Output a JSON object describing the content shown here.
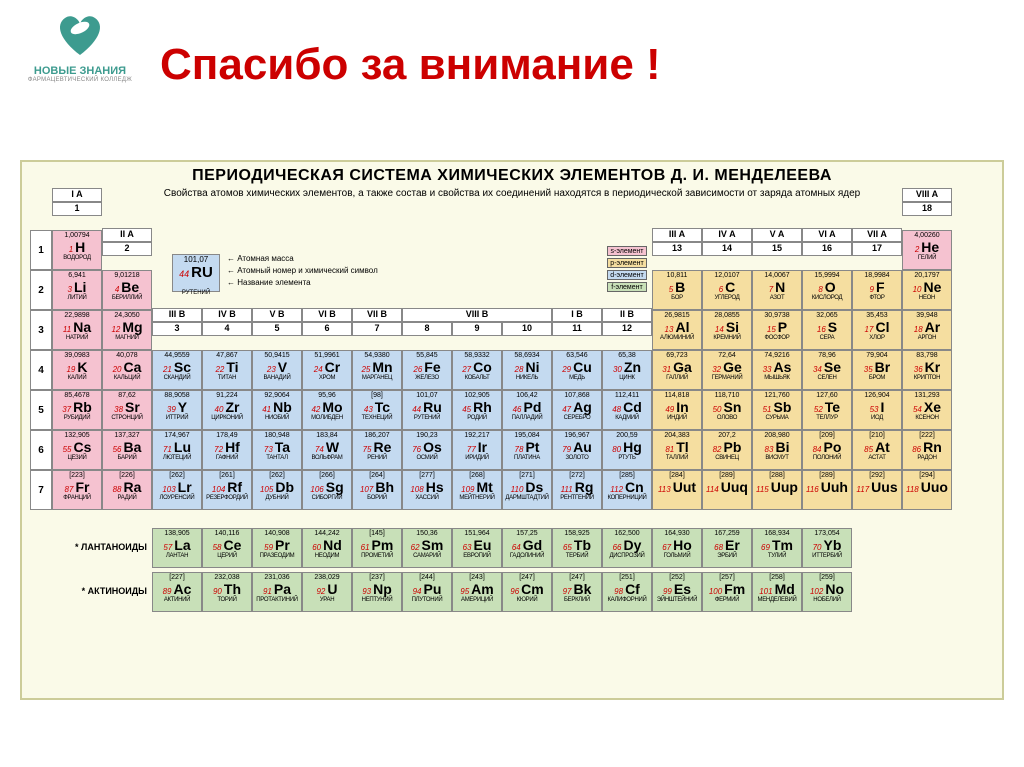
{
  "logo": {
    "line1": "НОВЫЕ ЗНАНИЯ",
    "line2": "ФАРМАЦЕВТИЧЕСКИЙ КОЛЛЕДЖ",
    "color1": "#3d9b8f",
    "color2": "#888888"
  },
  "title": {
    "text": "Спасибо за внимание !",
    "color": "#cc0000"
  },
  "table": {
    "bg": "#fafae8",
    "title": "ПЕРИОДИЧЕСКАЯ СИСТЕМА ХИМИЧЕСКИХ ЭЛЕМЕНТОВ Д. И. МЕНДЕЛЕЕВА",
    "subtitle": "Свойства атомов химических элементов, а также состав и свойства их соединений находятся в периодической зависимости от заряда атомных ядер",
    "colors": {
      "s": "#f5c2d0",
      "p": "#f5dea0",
      "d": "#c4daf0",
      "f": "#c8e0b8",
      "header": "#ffffff"
    },
    "legend_types": [
      {
        "label": "s-элемент",
        "color": "#f5c2d0"
      },
      {
        "label": "p-элемент",
        "color": "#f5dea0"
      },
      {
        "label": "d-элемент",
        "color": "#c4daf0"
      },
      {
        "label": "f-элемент",
        "color": "#c8e0b8"
      }
    ],
    "key": {
      "mass": "101,07",
      "num": "44",
      "sym": "RU",
      "name": "РУТЕНИЙ",
      "labels": [
        "Атомная масса",
        "Атомный номер и химический символ",
        "Название элемента"
      ]
    },
    "group_labels_top": [
      "I A",
      "II A",
      "III B",
      "IV B",
      "V B",
      "VI B",
      "VII B",
      "VIII B",
      "I B",
      "II B",
      "III A",
      "IV A",
      "V A",
      "VI A",
      "VII A",
      "VIII A"
    ],
    "group_numbers": [
      "1",
      "2",
      "3",
      "4",
      "5",
      "6",
      "7",
      "8",
      "9",
      "10",
      "11",
      "12",
      "13",
      "14",
      "15",
      "16",
      "17",
      "18"
    ],
    "periods": [
      "1",
      "2",
      "3",
      "4",
      "5",
      "6",
      "7"
    ],
    "lanth_label": "* ЛАНТАНОИДЫ",
    "actin_label": "* АКТИНОИДЫ",
    "elements": [
      {
        "n": 1,
        "s": "H",
        "m": "1,00794",
        "nm": "ВОДОРОД",
        "g": 1,
        "p": 1,
        "b": "s"
      },
      {
        "n": 2,
        "s": "He",
        "m": "4,00260",
        "nm": "ГЕЛИЙ",
        "g": 18,
        "p": 1,
        "b": "s"
      },
      {
        "n": 3,
        "s": "Li",
        "m": "6,941",
        "nm": "ЛИТИЙ",
        "g": 1,
        "p": 2,
        "b": "s"
      },
      {
        "n": 4,
        "s": "Be",
        "m": "9,01218",
        "nm": "БЕРИЛЛИЙ",
        "g": 2,
        "p": 2,
        "b": "s"
      },
      {
        "n": 5,
        "s": "B",
        "m": "10,811",
        "nm": "БОР",
        "g": 13,
        "p": 2,
        "b": "p"
      },
      {
        "n": 6,
        "s": "C",
        "m": "12,0107",
        "nm": "УГЛЕРОД",
        "g": 14,
        "p": 2,
        "b": "p"
      },
      {
        "n": 7,
        "s": "N",
        "m": "14,0067",
        "nm": "АЗОТ",
        "g": 15,
        "p": 2,
        "b": "p"
      },
      {
        "n": 8,
        "s": "O",
        "m": "15,9994",
        "nm": "КИСЛОРОД",
        "g": 16,
        "p": 2,
        "b": "p"
      },
      {
        "n": 9,
        "s": "F",
        "m": "18,9984",
        "nm": "ФТОР",
        "g": 17,
        "p": 2,
        "b": "p"
      },
      {
        "n": 10,
        "s": "Ne",
        "m": "20,1797",
        "nm": "НЕОН",
        "g": 18,
        "p": 2,
        "b": "p"
      },
      {
        "n": 11,
        "s": "Na",
        "m": "22,9898",
        "nm": "НАТРИЙ",
        "g": 1,
        "p": 3,
        "b": "s"
      },
      {
        "n": 12,
        "s": "Mg",
        "m": "24,3050",
        "nm": "МАГНИЙ",
        "g": 2,
        "p": 3,
        "b": "s"
      },
      {
        "n": 13,
        "s": "Al",
        "m": "26,9815",
        "nm": "АЛЮМИНИЙ",
        "g": 13,
        "p": 3,
        "b": "p"
      },
      {
        "n": 14,
        "s": "Si",
        "m": "28,0855",
        "nm": "КРЕМНИЙ",
        "g": 14,
        "p": 3,
        "b": "p"
      },
      {
        "n": 15,
        "s": "P",
        "m": "30,9738",
        "nm": "ФОСФОР",
        "g": 15,
        "p": 3,
        "b": "p"
      },
      {
        "n": 16,
        "s": "S",
        "m": "32,065",
        "nm": "СЕРА",
        "g": 16,
        "p": 3,
        "b": "p"
      },
      {
        "n": 17,
        "s": "Cl",
        "m": "35,453",
        "nm": "ХЛОР",
        "g": 17,
        "p": 3,
        "b": "p"
      },
      {
        "n": 18,
        "s": "Ar",
        "m": "39,948",
        "nm": "АРГОН",
        "g": 18,
        "p": 3,
        "b": "p"
      },
      {
        "n": 19,
        "s": "K",
        "m": "39,0983",
        "nm": "КАЛИЙ",
        "g": 1,
        "p": 4,
        "b": "s"
      },
      {
        "n": 20,
        "s": "Ca",
        "m": "40,078",
        "nm": "КАЛЬЦИЙ",
        "g": 2,
        "p": 4,
        "b": "s"
      },
      {
        "n": 21,
        "s": "Sc",
        "m": "44,9559",
        "nm": "СКАНДИЙ",
        "g": 3,
        "p": 4,
        "b": "d"
      },
      {
        "n": 22,
        "s": "Ti",
        "m": "47,867",
        "nm": "ТИТАН",
        "g": 4,
        "p": 4,
        "b": "d"
      },
      {
        "n": 23,
        "s": "V",
        "m": "50,9415",
        "nm": "ВАНАДИЙ",
        "g": 5,
        "p": 4,
        "b": "d"
      },
      {
        "n": 24,
        "s": "Cr",
        "m": "51,9961",
        "nm": "ХРОМ",
        "g": 6,
        "p": 4,
        "b": "d"
      },
      {
        "n": 25,
        "s": "Mn",
        "m": "54,9380",
        "nm": "МАРГАНЕЦ",
        "g": 7,
        "p": 4,
        "b": "d"
      },
      {
        "n": 26,
        "s": "Fe",
        "m": "55,845",
        "nm": "ЖЕЛЕЗО",
        "g": 8,
        "p": 4,
        "b": "d"
      },
      {
        "n": 27,
        "s": "Co",
        "m": "58,9332",
        "nm": "КОБАЛЬТ",
        "g": 9,
        "p": 4,
        "b": "d"
      },
      {
        "n": 28,
        "s": "Ni",
        "m": "58,6934",
        "nm": "НИКЕЛЬ",
        "g": 10,
        "p": 4,
        "b": "d"
      },
      {
        "n": 29,
        "s": "Cu",
        "m": "63,546",
        "nm": "МЕДЬ",
        "g": 11,
        "p": 4,
        "b": "d"
      },
      {
        "n": 30,
        "s": "Zn",
        "m": "65,38",
        "nm": "ЦИНК",
        "g": 12,
        "p": 4,
        "b": "d"
      },
      {
        "n": 31,
        "s": "Ga",
        "m": "69,723",
        "nm": "ГАЛЛИЙ",
        "g": 13,
        "p": 4,
        "b": "p"
      },
      {
        "n": 32,
        "s": "Ge",
        "m": "72,64",
        "nm": "ГЕРМАНИЙ",
        "g": 14,
        "p": 4,
        "b": "p"
      },
      {
        "n": 33,
        "s": "As",
        "m": "74,9216",
        "nm": "МЫШЬЯК",
        "g": 15,
        "p": 4,
        "b": "p"
      },
      {
        "n": 34,
        "s": "Se",
        "m": "78,96",
        "nm": "СЕЛЕН",
        "g": 16,
        "p": 4,
        "b": "p"
      },
      {
        "n": 35,
        "s": "Br",
        "m": "79,904",
        "nm": "БРОМ",
        "g": 17,
        "p": 4,
        "b": "p"
      },
      {
        "n": 36,
        "s": "Kr",
        "m": "83,798",
        "nm": "КРИПТОН",
        "g": 18,
        "p": 4,
        "b": "p"
      },
      {
        "n": 37,
        "s": "Rb",
        "m": "85,4678",
        "nm": "РУБИДИЙ",
        "g": 1,
        "p": 5,
        "b": "s"
      },
      {
        "n": 38,
        "s": "Sr",
        "m": "87,62",
        "nm": "СТРОНЦИЙ",
        "g": 2,
        "p": 5,
        "b": "s"
      },
      {
        "n": 39,
        "s": "Y",
        "m": "88,9058",
        "nm": "ИТТРИЙ",
        "g": 3,
        "p": 5,
        "b": "d"
      },
      {
        "n": 40,
        "s": "Zr",
        "m": "91,224",
        "nm": "ЦИРКОНИЙ",
        "g": 4,
        "p": 5,
        "b": "d"
      },
      {
        "n": 41,
        "s": "Nb",
        "m": "92,9064",
        "nm": "НИОБИЙ",
        "g": 5,
        "p": 5,
        "b": "d"
      },
      {
        "n": 42,
        "s": "Mo",
        "m": "95,96",
        "nm": "МОЛИБДЕН",
        "g": 6,
        "p": 5,
        "b": "d"
      },
      {
        "n": 43,
        "s": "Tc",
        "m": "[98]",
        "nm": "ТЕХНЕЦИЙ",
        "g": 7,
        "p": 5,
        "b": "d"
      },
      {
        "n": 44,
        "s": "Ru",
        "m": "101,07",
        "nm": "РУТЕНИЙ",
        "g": 8,
        "p": 5,
        "b": "d"
      },
      {
        "n": 45,
        "s": "Rh",
        "m": "102,905",
        "nm": "РОДИЙ",
        "g": 9,
        "p": 5,
        "b": "d"
      },
      {
        "n": 46,
        "s": "Pd",
        "m": "106,42",
        "nm": "ПАЛЛАДИЙ",
        "g": 10,
        "p": 5,
        "b": "d"
      },
      {
        "n": 47,
        "s": "Ag",
        "m": "107,868",
        "nm": "СЕРЕБРО",
        "g": 11,
        "p": 5,
        "b": "d"
      },
      {
        "n": 48,
        "s": "Cd",
        "m": "112,411",
        "nm": "КАДМИЙ",
        "g": 12,
        "p": 5,
        "b": "d"
      },
      {
        "n": 49,
        "s": "In",
        "m": "114,818",
        "nm": "ИНДИЙ",
        "g": 13,
        "p": 5,
        "b": "p"
      },
      {
        "n": 50,
        "s": "Sn",
        "m": "118,710",
        "nm": "ОЛОВО",
        "g": 14,
        "p": 5,
        "b": "p"
      },
      {
        "n": 51,
        "s": "Sb",
        "m": "121,760",
        "nm": "СУРЬМА",
        "g": 15,
        "p": 5,
        "b": "p"
      },
      {
        "n": 52,
        "s": "Te",
        "m": "127,60",
        "nm": "ТЕЛЛУР",
        "g": 16,
        "p": 5,
        "b": "p"
      },
      {
        "n": 53,
        "s": "I",
        "m": "126,904",
        "nm": "ИОД",
        "g": 17,
        "p": 5,
        "b": "p"
      },
      {
        "n": 54,
        "s": "Xe",
        "m": "131,293",
        "nm": "КСЕНОН",
        "g": 18,
        "p": 5,
        "b": "p"
      },
      {
        "n": 55,
        "s": "Cs",
        "m": "132,905",
        "nm": "ЦЕЗИЙ",
        "g": 1,
        "p": 6,
        "b": "s"
      },
      {
        "n": 56,
        "s": "Ba",
        "m": "137,327",
        "nm": "БАРИЙ",
        "g": 2,
        "p": 6,
        "b": "s"
      },
      {
        "n": 71,
        "s": "Lu",
        "m": "174,967",
        "nm": "ЛЮТЕЦИЙ",
        "g": 3,
        "p": 6,
        "b": "d"
      },
      {
        "n": 72,
        "s": "Hf",
        "m": "178,49",
        "nm": "ГАФНИЙ",
        "g": 4,
        "p": 6,
        "b": "d"
      },
      {
        "n": 73,
        "s": "Ta",
        "m": "180,948",
        "nm": "ТАНТАЛ",
        "g": 5,
        "p": 6,
        "b": "d"
      },
      {
        "n": 74,
        "s": "W",
        "m": "183,84",
        "nm": "ВОЛЬФРАМ",
        "g": 6,
        "p": 6,
        "b": "d"
      },
      {
        "n": 75,
        "s": "Re",
        "m": "186,207",
        "nm": "РЕНИЙ",
        "g": 7,
        "p": 6,
        "b": "d"
      },
      {
        "n": 76,
        "s": "Os",
        "m": "190,23",
        "nm": "ОСМИЙ",
        "g": 8,
        "p": 6,
        "b": "d"
      },
      {
        "n": 77,
        "s": "Ir",
        "m": "192,217",
        "nm": "ИРИДИЙ",
        "g": 9,
        "p": 6,
        "b": "d"
      },
      {
        "n": 78,
        "s": "Pt",
        "m": "195,084",
        "nm": "ПЛАТИНА",
        "g": 10,
        "p": 6,
        "b": "d"
      },
      {
        "n": 79,
        "s": "Au",
        "m": "196,967",
        "nm": "ЗОЛОТО",
        "g": 11,
        "p": 6,
        "b": "d"
      },
      {
        "n": 80,
        "s": "Hg",
        "m": "200,59",
        "nm": "РТУТЬ",
        "g": 12,
        "p": 6,
        "b": "d"
      },
      {
        "n": 81,
        "s": "Tl",
        "m": "204,383",
        "nm": "ТАЛЛИЙ",
        "g": 13,
        "p": 6,
        "b": "p"
      },
      {
        "n": 82,
        "s": "Pb",
        "m": "207,2",
        "nm": "СВИНЕЦ",
        "g": 14,
        "p": 6,
        "b": "p"
      },
      {
        "n": 83,
        "s": "Bi",
        "m": "208,980",
        "nm": "ВИСМУТ",
        "g": 15,
        "p": 6,
        "b": "p"
      },
      {
        "n": 84,
        "s": "Po",
        "m": "[209]",
        "nm": "ПОЛОНИЙ",
        "g": 16,
        "p": 6,
        "b": "p"
      },
      {
        "n": 85,
        "s": "At",
        "m": "[210]",
        "nm": "АСТАТ",
        "g": 17,
        "p": 6,
        "b": "p"
      },
      {
        "n": 86,
        "s": "Rn",
        "m": "[222]",
        "nm": "РАДОН",
        "g": 18,
        "p": 6,
        "b": "p"
      },
      {
        "n": 87,
        "s": "Fr",
        "m": "[223]",
        "nm": "ФРАНЦИЙ",
        "g": 1,
        "p": 7,
        "b": "s"
      },
      {
        "n": 88,
        "s": "Ra",
        "m": "[226]",
        "nm": "РАДИЙ",
        "g": 2,
        "p": 7,
        "b": "s"
      },
      {
        "n": 103,
        "s": "Lr",
        "m": "[262]",
        "nm": "ЛОУРЕНСИЙ",
        "g": 3,
        "p": 7,
        "b": "d"
      },
      {
        "n": 104,
        "s": "Rf",
        "m": "[261]",
        "nm": "РЕЗЕРФОРДИЙ",
        "g": 4,
        "p": 7,
        "b": "d"
      },
      {
        "n": 105,
        "s": "Db",
        "m": "[262]",
        "nm": "ДУБНИЙ",
        "g": 5,
        "p": 7,
        "b": "d"
      },
      {
        "n": 106,
        "s": "Sg",
        "m": "[266]",
        "nm": "СИБОРГИЙ",
        "g": 6,
        "p": 7,
        "b": "d"
      },
      {
        "n": 107,
        "s": "Bh",
        "m": "[264]",
        "nm": "БОРИЙ",
        "g": 7,
        "p": 7,
        "b": "d"
      },
      {
        "n": 108,
        "s": "Hs",
        "m": "[277]",
        "nm": "ХАССИЙ",
        "g": 8,
        "p": 7,
        "b": "d"
      },
      {
        "n": 109,
        "s": "Mt",
        "m": "[268]",
        "nm": "МЕЙТНЕРИЙ",
        "g": 9,
        "p": 7,
        "b": "d"
      },
      {
        "n": 110,
        "s": "Ds",
        "m": "[271]",
        "nm": "ДАРМШТАДТИЙ",
        "g": 10,
        "p": 7,
        "b": "d"
      },
      {
        "n": 111,
        "s": "Rg",
        "m": "[272]",
        "nm": "РЕНТГЕНИЙ",
        "g": 11,
        "p": 7,
        "b": "d"
      },
      {
        "n": 112,
        "s": "Cn",
        "m": "[285]",
        "nm": "КОПЕРНИЦИЙ",
        "g": 12,
        "p": 7,
        "b": "d"
      },
      {
        "n": 113,
        "s": "Uut",
        "m": "[284]",
        "nm": "",
        "g": 13,
        "p": 7,
        "b": "p"
      },
      {
        "n": 114,
        "s": "Uuq",
        "m": "[289]",
        "nm": "",
        "g": 14,
        "p": 7,
        "b": "p"
      },
      {
        "n": 115,
        "s": "Uup",
        "m": "[288]",
        "nm": "",
        "g": 15,
        "p": 7,
        "b": "p"
      },
      {
        "n": 116,
        "s": "Uuh",
        "m": "[289]",
        "nm": "",
        "g": 16,
        "p": 7,
        "b": "p"
      },
      {
        "n": 117,
        "s": "Uus",
        "m": "[292]",
        "nm": "",
        "g": 17,
        "p": 7,
        "b": "p"
      },
      {
        "n": 118,
        "s": "Uuo",
        "m": "[294]",
        "nm": "",
        "g": 18,
        "p": 7,
        "b": "p"
      }
    ],
    "lanthanides": [
      {
        "n": 57,
        "s": "La",
        "m": "138,905",
        "nm": "ЛАНТАН"
      },
      {
        "n": 58,
        "s": "Ce",
        "m": "140,116",
        "nm": "ЦЕРИЙ"
      },
      {
        "n": 59,
        "s": "Pr",
        "m": "140,908",
        "nm": "ПРАЗЕОДИМ"
      },
      {
        "n": 60,
        "s": "Nd",
        "m": "144,242",
        "nm": "НЕОДИМ"
      },
      {
        "n": 61,
        "s": "Pm",
        "m": "[145]",
        "nm": "ПРОМЕТИЙ"
      },
      {
        "n": 62,
        "s": "Sm",
        "m": "150,36",
        "nm": "САМАРИЙ"
      },
      {
        "n": 63,
        "s": "Eu",
        "m": "151,964",
        "nm": "ЕВРОПИЙ"
      },
      {
        "n": 64,
        "s": "Gd",
        "m": "157,25",
        "nm": "ГАДОЛИНИЙ"
      },
      {
        "n": 65,
        "s": "Tb",
        "m": "158,925",
        "nm": "ТЕРБИЙ"
      },
      {
        "n": 66,
        "s": "Dy",
        "m": "162,500",
        "nm": "ДИСПРОЗИЙ"
      },
      {
        "n": 67,
        "s": "Ho",
        "m": "164,930",
        "nm": "ГОЛЬМИЙ"
      },
      {
        "n": 68,
        "s": "Er",
        "m": "167,259",
        "nm": "ЭРБИЙ"
      },
      {
        "n": 69,
        "s": "Tm",
        "m": "168,934",
        "nm": "ТУЛИЙ"
      },
      {
        "n": 70,
        "s": "Yb",
        "m": "173,054",
        "nm": "ИТТЕРБИЙ"
      }
    ],
    "actinides": [
      {
        "n": 89,
        "s": "Ac",
        "m": "[227]",
        "nm": "АКТИНИЙ"
      },
      {
        "n": 90,
        "s": "Th",
        "m": "232,038",
        "nm": "ТОРИЙ"
      },
      {
        "n": 91,
        "s": "Pa",
        "m": "231,036",
        "nm": "ПРОТАКТИНИЙ"
      },
      {
        "n": 92,
        "s": "U",
        "m": "238,029",
        "nm": "УРАН"
      },
      {
        "n": 93,
        "s": "Np",
        "m": "[237]",
        "nm": "НЕПТУНИЙ"
      },
      {
        "n": 94,
        "s": "Pu",
        "m": "[244]",
        "nm": "ПЛУТОНИЙ"
      },
      {
        "n": 95,
        "s": "Am",
        "m": "[243]",
        "nm": "АМЕРИЦИЙ"
      },
      {
        "n": 96,
        "s": "Cm",
        "m": "[247]",
        "nm": "КЮРИЙ"
      },
      {
        "n": 97,
        "s": "Bk",
        "m": "[247]",
        "nm": "БЕРКЛИЙ"
      },
      {
        "n": 98,
        "s": "Cf",
        "m": "[251]",
        "nm": "КАЛИФОРНИЙ"
      },
      {
        "n": 99,
        "s": "Es",
        "m": "[252]",
        "nm": "ЭЙНШТЕЙНИЙ"
      },
      {
        "n": 100,
        "s": "Fm",
        "m": "[257]",
        "nm": "ФЕРМИЙ"
      },
      {
        "n": 101,
        "s": "Md",
        "m": "[258]",
        "nm": "МЕНДЕЛЕВИЙ"
      },
      {
        "n": 102,
        "s": "No",
        "m": "[259]",
        "nm": "НОБЕЛИЙ"
      }
    ]
  }
}
